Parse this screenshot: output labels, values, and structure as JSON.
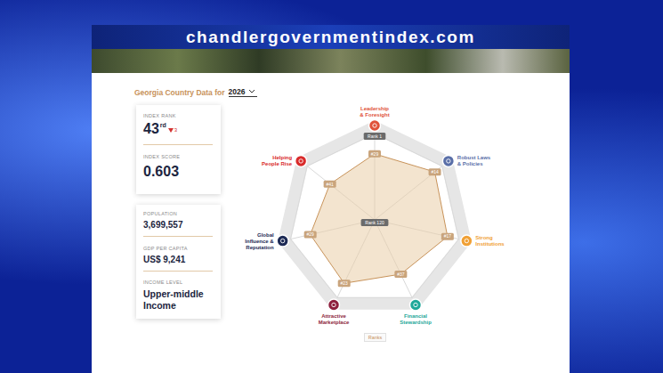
{
  "header": {
    "site": "chandlergovernmentindex.com"
  },
  "selector": {
    "label": "Georgia Country Data for",
    "year": "2026"
  },
  "rank_card": {
    "rank_label": "INDEX RANK",
    "rank": "43",
    "rank_suffix": "rd",
    "rank_change": "3",
    "rank_change_direction": "down",
    "score_label": "INDEX SCORE",
    "score": "0.603"
  },
  "facts": [
    {
      "label": "POPULATION",
      "value": "3,699,557"
    },
    {
      "label": "GDP PER CAPITA",
      "value": "US$ 9,241"
    },
    {
      "label": "INCOME LEVEL",
      "value": "Upper-middle Income"
    }
  ],
  "chart_data": {
    "type": "radar",
    "categories": [
      "Leadership & Foresight",
      "Robust Laws & Policies",
      "Strong Institutions",
      "Financial Stewardship",
      "Attractive Marketplace",
      "Global Influence & Reputation",
      "Helping People Rise"
    ],
    "colors": [
      "#e0523a",
      "#5a6fa8",
      "#f0a035",
      "#1fa89a",
      "#8e1f3d",
      "#1d2a55",
      "#d92b2b"
    ],
    "series": [
      {
        "name": "Ranks",
        "color": "#c8935a",
        "values": [
          29,
          14,
          17,
          37,
          23,
          29,
          41
        ],
        "value_labels": [
          "#29",
          "#14",
          "#17",
          "#37",
          "#23",
          "#29",
          "#41"
        ]
      }
    ],
    "ylim": [
      120,
      1
    ],
    "yticks": [
      {
        "value": 1,
        "label": "Rank 1"
      },
      {
        "value": 120,
        "label": "Rank 120"
      }
    ],
    "grid": true,
    "data_labels": true,
    "legend": "bottom"
  }
}
